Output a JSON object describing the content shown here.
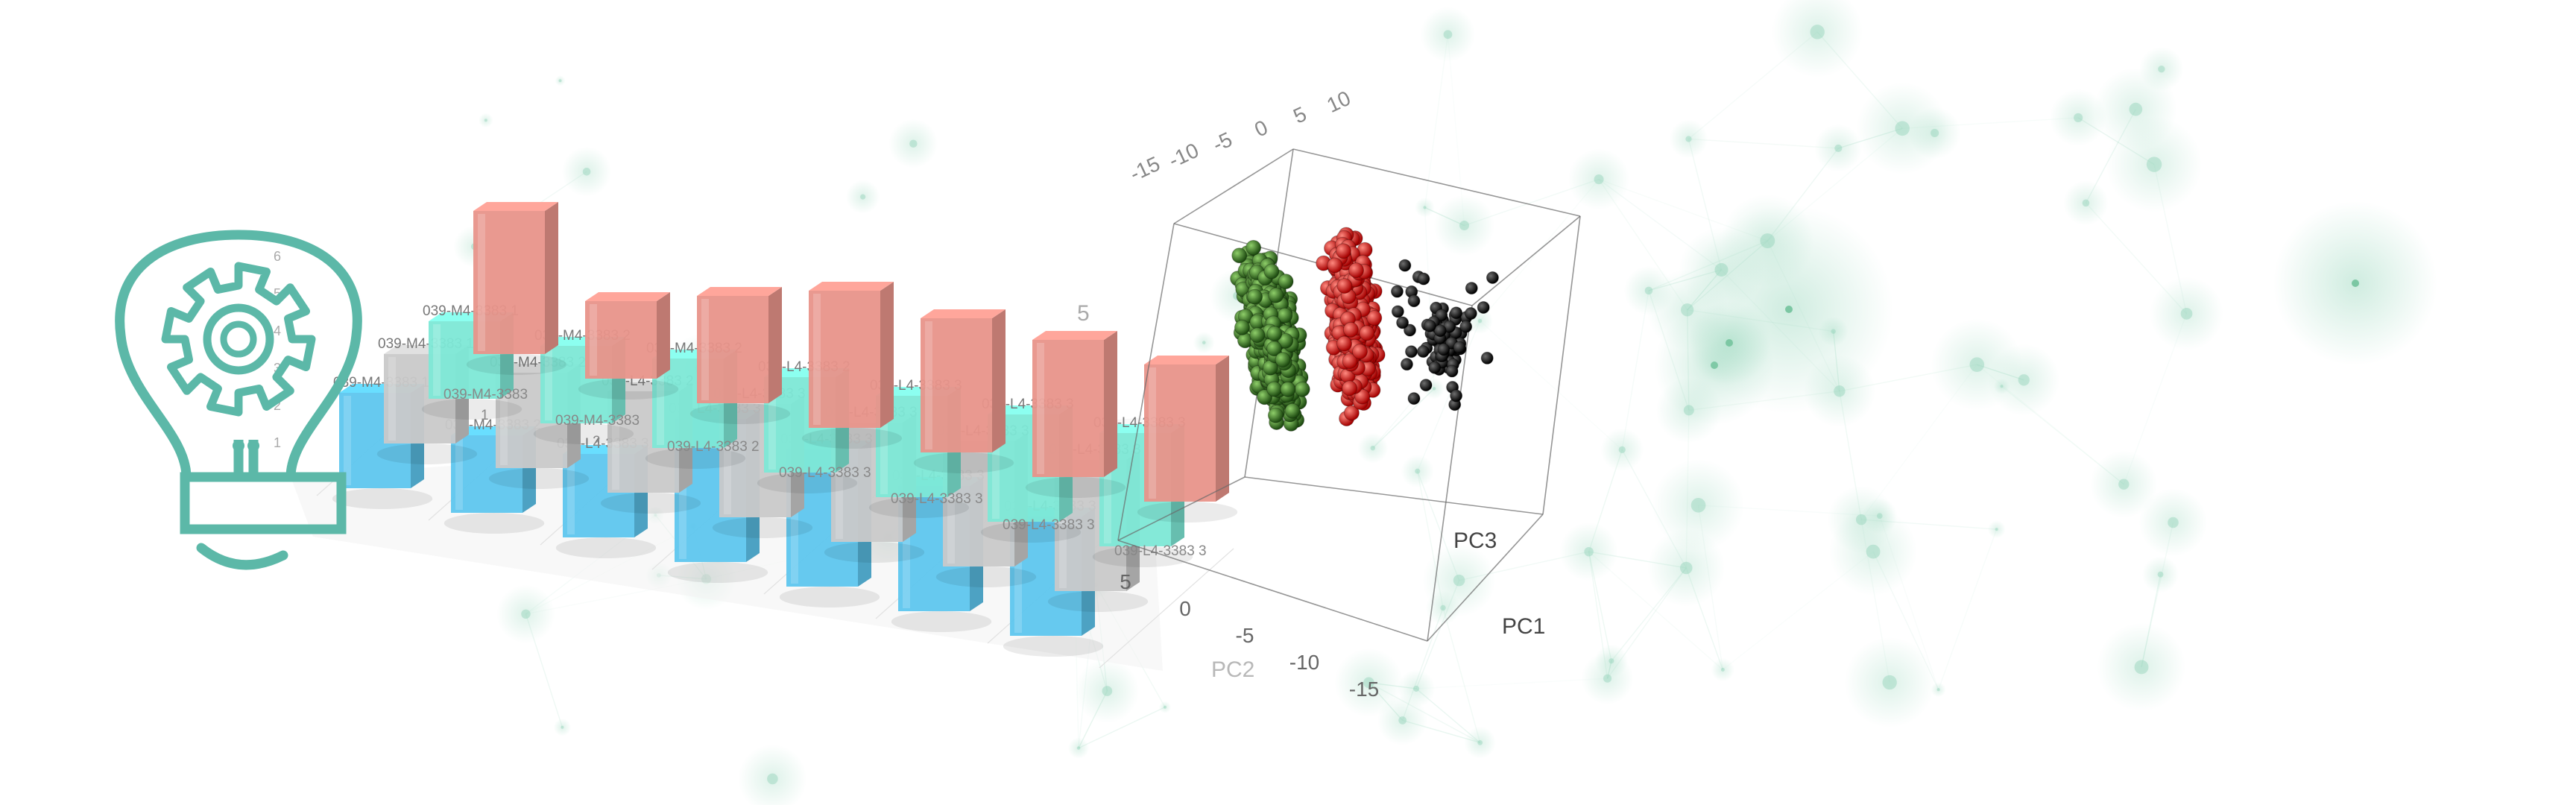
{
  "icon": {
    "name": "lightbulb-gear-icon",
    "color": "#5cb8a8"
  },
  "colors": {
    "bar_red": "#e8948a",
    "bar_cyan": "#7de8d6",
    "bar_gray": "#c9c9c9",
    "bar_blue": "#5ec6ee",
    "scatter_green": "#2f6b1e",
    "scatter_red": "#e01616",
    "scatter_black": "#101010",
    "network": "#9ad6bd"
  },
  "bar_chart": {
    "y_ticks": [
      "1",
      "2",
      "3",
      "4",
      "5",
      "6"
    ],
    "rows": [
      {
        "color": "bar_red",
        "floor_labels": [
          "039-M4-3383 1",
          "039-M4-3383 2",
          "039-L4-3383 2",
          "039-L4-3383 3",
          "039-L4-3383 3",
          "039-L4-3383 3",
          "039-L4-3383 3"
        ],
        "values": [
          4.8,
          2.6,
          3.6,
          4.6,
          4.5,
          4.6,
          4.6
        ]
      },
      {
        "color": "bar_cyan",
        "top_labels": [
          "039-M4-3383 1",
          "039-M4-3383 2",
          "039-M4-3383 2",
          "039-L4-3383 2",
          "039-L4-3383 3",
          "039-L4-3383 3",
          "039-L4-3383 3"
        ],
        "values": [
          2.6,
          2.6,
          3.0,
          3.2,
          3.4,
          3.6,
          3.8
        ]
      },
      {
        "color": "bar_gray",
        "top_labels": [
          "039-M4-3383 1",
          "039-M4-3383 2",
          "039-L4-3383 2",
          "039-L4-3383 3",
          "039-L4-3383 3",
          "039-L4-3383 3",
          "039-L4-3383 3"
        ],
        "values": [
          3.0,
          3.2,
          3.4,
          3.8,
          4.0,
          4.2,
          4.4
        ]
      },
      {
        "color": "bar_blue",
        "top_labels": [
          "039-M4-3383 1",
          "039-M4-3383 2",
          "039-L4-3383 3",
          "039-L4-3383 3",
          "039-L4-3383 3",
          "039-L4-3383 3",
          "039-L4-3383 3"
        ],
        "values": [
          3.2,
          2.6,
          2.8,
          4.8,
          4.6,
          4.2,
          4.0
        ]
      }
    ]
  },
  "scatter3d": {
    "axis_pc1_label": "PC1",
    "axis_pc2_label": "PC2",
    "axis_pc3_label": "PC3",
    "pc2_ticks": [
      "5",
      "0",
      "-5",
      "-10",
      "-15"
    ],
    "top_ticks": [
      "-15",
      "-10",
      "-5",
      "0",
      "5",
      "10"
    ],
    "side_tick": "5",
    "clusters": [
      {
        "color": "scatter_green",
        "count": 900
      },
      {
        "color": "scatter_red",
        "count": 800
      },
      {
        "color": "scatter_black",
        "count": 110
      }
    ]
  }
}
